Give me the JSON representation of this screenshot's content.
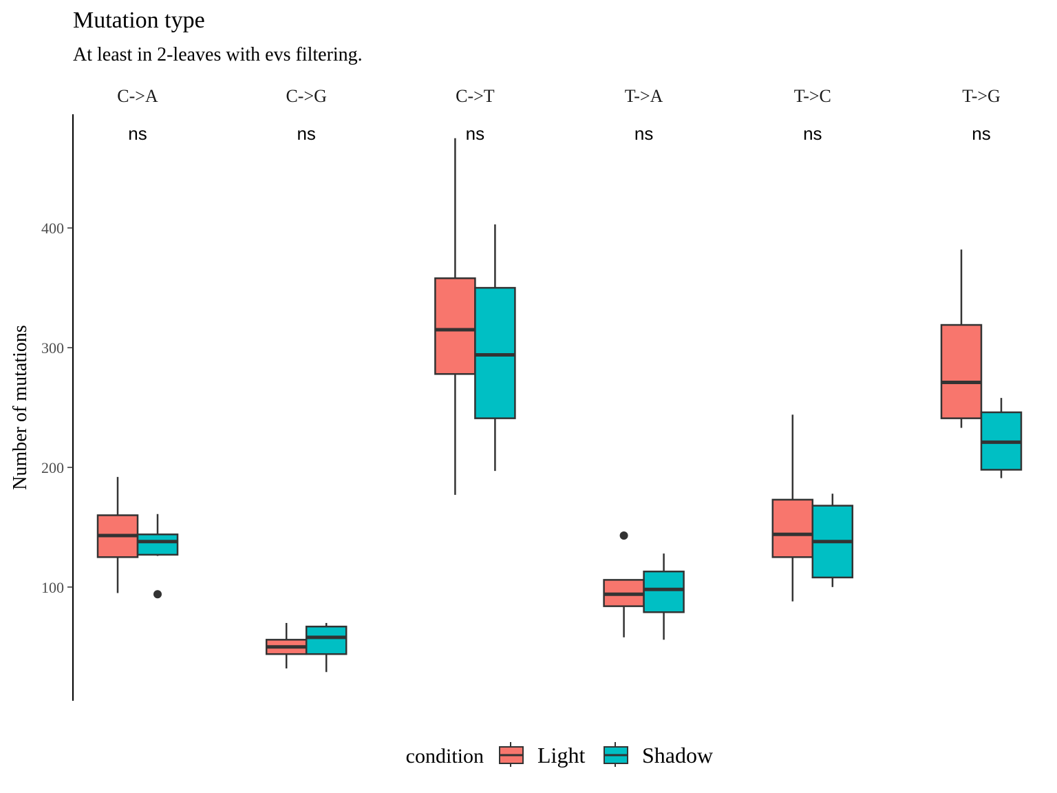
{
  "chart_data": {
    "type": "boxplot",
    "title": "Mutation type",
    "subtitle": "At least in 2-leaves with evs filtering.",
    "ylabel": "Number of mutations",
    "xlabel": "",
    "ylim": [
      5,
      495
    ],
    "yticks": [
      100,
      200,
      300,
      400
    ],
    "ytick_labels": [
      "100",
      "200",
      "300",
      "400"
    ],
    "grid": false,
    "legend": {
      "title": "condition",
      "position": "bottom",
      "entries": [
        {
          "name": "Light",
          "color": "#F8766D"
        },
        {
          "name": "Shadow",
          "color": "#00BFC4"
        }
      ]
    },
    "facets": [
      {
        "label": "C->A",
        "annotation": "ns",
        "series": [
          {
            "name": "Light",
            "whisker_low": 95,
            "q1": 125,
            "median": 143,
            "q3": 160,
            "whisker_high": 192,
            "outliers": []
          },
          {
            "name": "Shadow",
            "whisker_low": 126,
            "q1": 127,
            "median": 138,
            "q3": 144,
            "whisker_high": 161,
            "outliers": [
              94
            ]
          }
        ]
      },
      {
        "label": "C->G",
        "annotation": "ns",
        "series": [
          {
            "name": "Light",
            "whisker_low": 32,
            "q1": 44,
            "median": 50,
            "q3": 56,
            "whisker_high": 70,
            "outliers": []
          },
          {
            "name": "Shadow",
            "whisker_low": 29,
            "q1": 44,
            "median": 58,
            "q3": 67,
            "whisker_high": 70,
            "outliers": []
          }
        ]
      },
      {
        "label": "C->T",
        "annotation": "ns",
        "series": [
          {
            "name": "Light",
            "whisker_low": 177,
            "q1": 278,
            "median": 315,
            "q3": 358,
            "whisker_high": 475,
            "outliers": []
          },
          {
            "name": "Shadow",
            "whisker_low": 197,
            "q1": 241,
            "median": 294,
            "q3": 350,
            "whisker_high": 403,
            "outliers": []
          }
        ]
      },
      {
        "label": "T->A",
        "annotation": "ns",
        "series": [
          {
            "name": "Light",
            "whisker_low": 58,
            "q1": 84,
            "median": 94,
            "q3": 106,
            "whisker_high": 106,
            "outliers": [
              143
            ]
          },
          {
            "name": "Shadow",
            "whisker_low": 56,
            "q1": 79,
            "median": 98,
            "q3": 113,
            "whisker_high": 128,
            "outliers": []
          }
        ]
      },
      {
        "label": "T->C",
        "annotation": "ns",
        "series": [
          {
            "name": "Light",
            "whisker_low": 88,
            "q1": 125,
            "median": 144,
            "q3": 173,
            "whisker_high": 244,
            "outliers": []
          },
          {
            "name": "Shadow",
            "whisker_low": 100,
            "q1": 108,
            "median": 138,
            "q3": 168,
            "whisker_high": 178,
            "outliers": []
          }
        ]
      },
      {
        "label": "T->G",
        "annotation": "ns",
        "series": [
          {
            "name": "Light",
            "whisker_low": 233,
            "q1": 241,
            "median": 271,
            "q3": 319,
            "whisker_high": 382,
            "outliers": []
          },
          {
            "name": "Shadow",
            "whisker_low": 191,
            "q1": 198,
            "median": 221,
            "q3": 246,
            "whisker_high": 258,
            "outliers": []
          }
        ]
      }
    ]
  }
}
